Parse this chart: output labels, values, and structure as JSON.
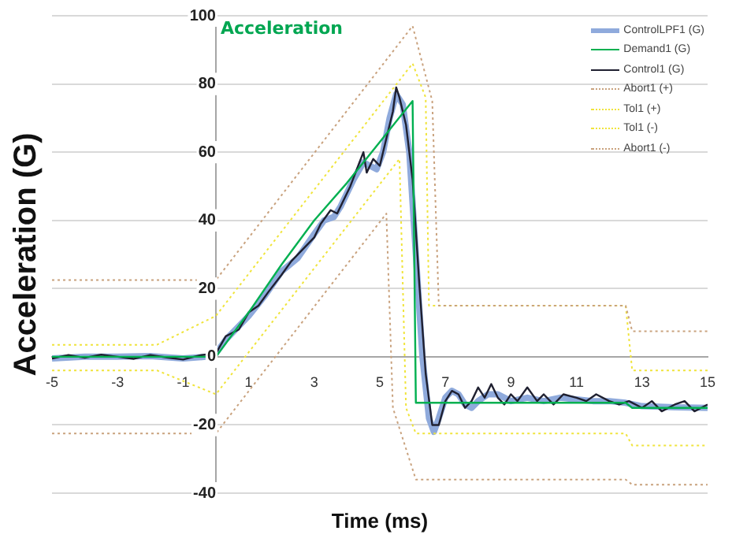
{
  "chart_data": {
    "type": "line",
    "title": "Acceleration",
    "xlabel": "Time (ms)",
    "ylabel": "Acceleration (G)",
    "xlim": [
      -5,
      15
    ],
    "xticks": [
      -5,
      -3,
      -1,
      1,
      3,
      5,
      7,
      9,
      11,
      13,
      15
    ],
    "ylim": [
      -40,
      100
    ],
    "yticks": [
      -40,
      -20,
      0,
      20,
      40,
      60,
      80,
      100
    ],
    "grid": "y",
    "legend": "top right",
    "marker": "none",
    "series": [
      {
        "name": "ControlLPF1 (G)",
        "color": "#8faadc",
        "line_style": "solid",
        "x": [
          -5,
          -4,
          -3,
          -2,
          -1,
          -0.3,
          0,
          0.3,
          0.7,
          1,
          1.5,
          2,
          2.5,
          3,
          3.3,
          3.6,
          3.8,
          4.2,
          4.5,
          4.7,
          4.9,
          5.1,
          5.3,
          5.5,
          5.7,
          5.9,
          6.1,
          6.3,
          6.5,
          6.65,
          6.8,
          7,
          7.2,
          7.4,
          7.6,
          7.8,
          8,
          8.3,
          8.6,
          9,
          9.5,
          10,
          10.5,
          11,
          11.5,
          12,
          12.5,
          13,
          14,
          15
        ],
        "values": [
          -0.5,
          0,
          0,
          0.2,
          -0.5,
          0,
          1,
          5,
          9,
          12,
          18,
          25,
          29,
          36,
          40,
          41,
          44,
          52,
          57,
          56,
          55,
          60,
          70,
          77,
          74,
          60,
          30,
          0,
          -18,
          -22,
          -18,
          -12,
          -10,
          -11,
          -14,
          -15,
          -13,
          -11,
          -11,
          -13,
          -12,
          -13,
          -12,
          -12.5,
          -13,
          -13,
          -13.5,
          -14.5,
          -14.8,
          -15
        ]
      },
      {
        "name": "Demand1 (G)",
        "color": "#00b050",
        "line_style": "solid",
        "x": [
          -5,
          0,
          1,
          2,
          3,
          4,
          5,
          6,
          6.1,
          12.5,
          12.7,
          15
        ],
        "values": [
          0,
          0,
          13,
          27,
          40,
          51,
          63,
          75,
          -13.5,
          -13.5,
          -15,
          -15
        ]
      },
      {
        "name": "Control1 (G)",
        "color": "#1f2030",
        "line_style": "solid",
        "x": [
          -5,
          -4.5,
          -4,
          -3.5,
          -3,
          -2.5,
          -2,
          -1.5,
          -1,
          -0.5,
          0,
          0.3,
          0.7,
          1,
          1.3,
          1.6,
          2,
          2.3,
          2.6,
          3,
          3.2,
          3.5,
          3.7,
          3.9,
          4.1,
          4.3,
          4.5,
          4.6,
          4.8,
          5,
          5.2,
          5.4,
          5.5,
          5.6,
          5.8,
          6,
          6.2,
          6.4,
          6.6,
          6.8,
          7,
          7.2,
          7.4,
          7.6,
          7.8,
          8,
          8.2,
          8.4,
          8.6,
          8.8,
          9,
          9.2,
          9.5,
          9.8,
          10,
          10.3,
          10.6,
          11,
          11.3,
          11.6,
          12,
          12.3,
          12.6,
          13,
          13.3,
          13.6,
          14,
          14.3,
          14.6,
          15
        ],
        "values": [
          -0.5,
          0.5,
          -0.3,
          0.6,
          0,
          -0.6,
          0.5,
          -0.2,
          -0.8,
          0.4,
          1,
          6,
          8,
          13,
          15,
          19,
          24,
          28,
          31,
          35,
          39,
          43,
          42,
          46,
          50,
          55,
          60,
          54,
          58,
          56,
          64,
          72,
          79,
          76,
          68,
          52,
          22,
          -5,
          -20,
          -20,
          -13,
          -10,
          -11,
          -15,
          -13,
          -9,
          -12,
          -8,
          -12,
          -14,
          -11,
          -13,
          -9,
          -13,
          -11,
          -14,
          -11,
          -12,
          -13,
          -11,
          -13,
          -14,
          -13,
          -15,
          -13,
          -16,
          -14,
          -13,
          -16,
          -14
        ]
      },
      {
        "name": "Abort1 (+)",
        "color": "#c9a27e",
        "line_style": "dotted",
        "x": [
          -5,
          0,
          6,
          6.6,
          6.8,
          12.5,
          12.7,
          15
        ],
        "values": [
          22.5,
          22.5,
          97,
          75,
          15,
          15,
          7.5,
          7.5
        ]
      },
      {
        "name": "Tol1 (+)",
        "color": "#f0e43c",
        "line_style": "dotted",
        "x": [
          -5,
          -1.8,
          0,
          6,
          6.4,
          6.5,
          12.5,
          12.7,
          15
        ],
        "values": [
          3.5,
          3.5,
          12,
          86,
          76,
          15,
          15,
          -4,
          -4
        ]
      },
      {
        "name": "Tol1 (-)",
        "color": "#f0e43c",
        "line_style": "dotted",
        "x": [
          -5,
          -1.8,
          0,
          5.6,
          5.8,
          6.1,
          12.5,
          12.7,
          15
        ],
        "values": [
          -4,
          -4,
          -11,
          58,
          -15,
          -22.5,
          -22.5,
          -26,
          -26
        ]
      },
      {
        "name": "Abort1 (-)",
        "color": "#c9a27e",
        "line_style": "dotted",
        "x": [
          -5,
          0,
          5.2,
          5.4,
          6.1,
          12.5,
          12.7,
          15
        ],
        "values": [
          -22.5,
          -22.5,
          42,
          -15,
          -36,
          -36,
          -37.5,
          -37.5
        ]
      }
    ]
  }
}
